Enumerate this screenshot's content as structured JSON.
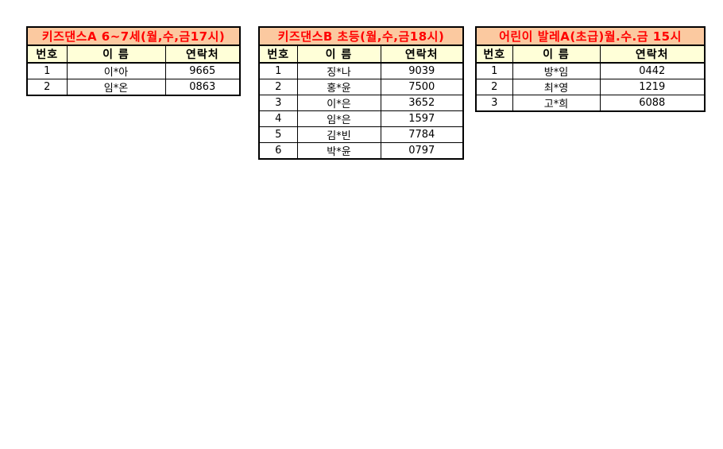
{
  "colors": {
    "title_bg": "#FBC9A0",
    "title_text": "#FF0000",
    "header_bg": "#FFFFD8",
    "cell_text": "#000000",
    "border": "#000000",
    "page_bg": "#FFFFFF"
  },
  "tables": [
    {
      "title": "키즈댄스A 6~7세(월,수,금17시)",
      "headers": [
        "번호",
        "이 름",
        "연락처"
      ],
      "rows": [
        {
          "no": "1",
          "name": "이*아",
          "contact": "9665"
        },
        {
          "no": "2",
          "name": "임*온",
          "contact": "0863"
        }
      ]
    },
    {
      "title": "키즈댄스B 초등(월,수,금18시)",
      "headers": [
        "번호",
        "이 름",
        "연락처"
      ],
      "rows": [
        {
          "no": "1",
          "name": "징*나",
          "contact": "9039"
        },
        {
          "no": "2",
          "name": "홍*윤",
          "contact": "7500"
        },
        {
          "no": "3",
          "name": "이*은",
          "contact": "3652"
        },
        {
          "no": "4",
          "name": "임*은",
          "contact": "1597"
        },
        {
          "no": "5",
          "name": "김*빈",
          "contact": "7784"
        },
        {
          "no": "6",
          "name": "박*윤",
          "contact": "0797"
        }
      ]
    },
    {
      "title": "어린이 발레A(초급)월.수.금 15시",
      "headers": [
        "번호",
        "이 름",
        "연락처"
      ],
      "rows": [
        {
          "no": "1",
          "name": "방*임",
          "contact": "0442"
        },
        {
          "no": "2",
          "name": "최*영",
          "contact": "1219"
        },
        {
          "no": "3",
          "name": "고*희",
          "contact": "6088"
        }
      ]
    }
  ]
}
